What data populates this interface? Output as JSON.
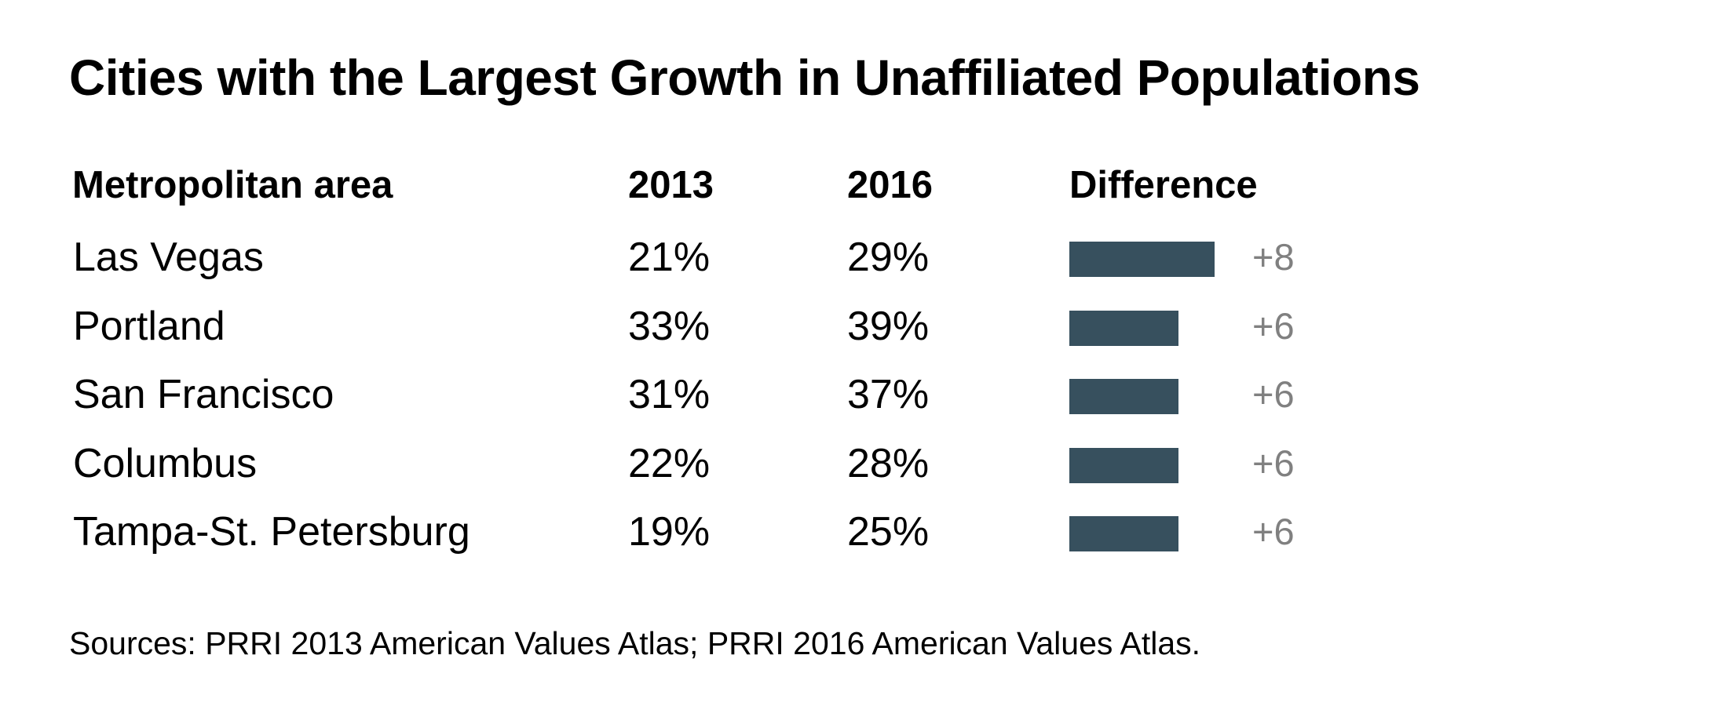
{
  "chart_data": {
    "type": "table",
    "title": "Cities with the Largest Growth in Unaffiliated Populations",
    "columns": [
      "Metropolitan area",
      "2013",
      "2016",
      "Difference"
    ],
    "rows": [
      {
        "area": "Las Vegas",
        "y2013": "21%",
        "y2016": "29%",
        "difference": 8,
        "difference_label": "+8"
      },
      {
        "area": "Portland",
        "y2013": "33%",
        "y2016": "39%",
        "difference": 6,
        "difference_label": "+6"
      },
      {
        "area": "San Francisco",
        "y2013": "31%",
        "y2016": "37%",
        "difference": 6,
        "difference_label": "+6"
      },
      {
        "area": "Columbus",
        "y2013": "22%",
        "y2016": "28%",
        "difference": 6,
        "difference_label": "+6"
      },
      {
        "area": "Tampa-St. Petersburg",
        "y2013": "19%",
        "y2016": "25%",
        "difference": 6,
        "difference_label": "+6"
      }
    ],
    "source": "Sources: PRRI 2013 American Values Atlas; PRRI 2016 American Values Atlas.",
    "bar_color": "#37505e",
    "label_color": "#808080"
  }
}
